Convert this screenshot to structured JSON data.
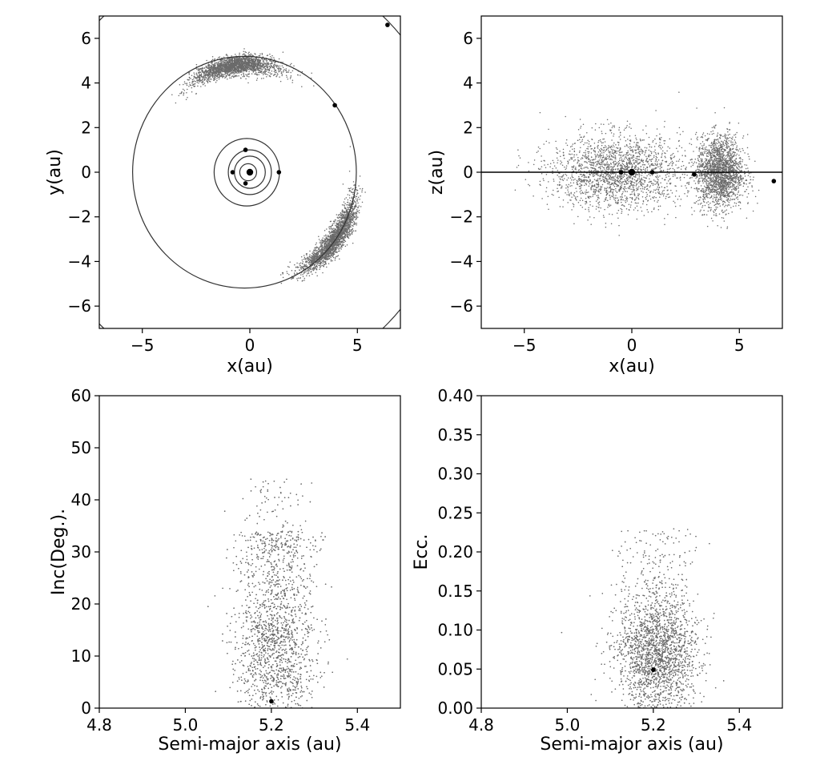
{
  "chart_data": [
    {
      "type": "scatter",
      "panel": "top-left",
      "xlabel": "x(au)",
      "ylabel": "y(au)",
      "xlim": [
        -7,
        7
      ],
      "ylim": [
        -7,
        7
      ],
      "xticks": [
        -5,
        0,
        5
      ],
      "yticks": [
        -6,
        -4,
        -2,
        0,
        2,
        4,
        6
      ],
      "tick_labels_x": [
        "−5",
        "0",
        "5"
      ],
      "tick_labels_y": [
        "−6",
        "−4",
        "−2",
        "0",
        "2",
        "4",
        "6"
      ],
      "orbits": [
        {
          "a": 0.39,
          "b": 0.38,
          "cx": -0.08,
          "cy": 0
        },
        {
          "a": 0.72,
          "b": 0.72,
          "cx": 0,
          "cy": 0
        },
        {
          "a": 1.0,
          "b": 1.0,
          "cx": 0,
          "cy": 0
        },
        {
          "a": 1.52,
          "b": 1.51,
          "cx": -0.14,
          "cy": 0
        },
        {
          "a": 5.2,
          "b": 5.19,
          "cx": -0.25,
          "cy": 0
        },
        {
          "a": 9.55,
          "b": 9.53,
          "cx": -0.3,
          "cy": 0
        }
      ],
      "bodies": [
        {
          "x": 0,
          "y": 0,
          "size": "large"
        },
        {
          "x": -0.2,
          "y": 1.0,
          "size": "small"
        },
        {
          "x": -0.8,
          "y": 0.0,
          "size": "small"
        },
        {
          "x": -0.2,
          "y": -0.5,
          "size": "small"
        },
        {
          "x": 1.35,
          "y": 0.0,
          "size": "small"
        },
        {
          "x": 3.95,
          "y": 3.0,
          "size": "small"
        },
        {
          "x": 6.4,
          "y": 6.6,
          "size": "small"
        }
      ],
      "swarms": [
        {
          "center_angle_deg": 98,
          "spread_deg": 22,
          "radius": 4.85,
          "radial_spread": 0.35
        },
        {
          "center_angle_deg": -38,
          "spread_deg": 22,
          "radius": 5.0,
          "radial_spread": 0.35
        }
      ]
    },
    {
      "type": "scatter",
      "panel": "top-right",
      "xlabel": "x(au)",
      "ylabel": "z(au)",
      "xlim": [
        -7,
        7
      ],
      "ylim": [
        -7,
        7
      ],
      "xticks": [
        -5,
        0,
        5
      ],
      "yticks": [
        -6,
        -4,
        -2,
        0,
        2,
        4,
        6
      ],
      "tick_labels_x": [
        "−5",
        "0",
        "5"
      ],
      "tick_labels_y": [
        "−6",
        "−4",
        "−2",
        "0",
        "2",
        "4",
        "6"
      ],
      "reference_line_y": 0,
      "bodies": [
        {
          "x": 0,
          "y": 0,
          "size": "large"
        },
        {
          "x": -0.5,
          "y": 0.0,
          "size": "small"
        },
        {
          "x": 0.95,
          "y": 0.0,
          "size": "small"
        },
        {
          "x": 2.9,
          "y": -0.1,
          "size": "small"
        },
        {
          "x": 6.6,
          "y": -0.4,
          "size": "small"
        }
      ],
      "swarms": [
        {
          "x_center": -0.7,
          "x_spread": 3.6,
          "z_spread": 1.35
        },
        {
          "x_center": 4.1,
          "x_spread": 1.3,
          "z_spread": 1.3
        }
      ]
    },
    {
      "type": "scatter",
      "panel": "bottom-left",
      "xlabel": "Semi-major axis (au)",
      "ylabel": "Inc(Deg.).",
      "xlim": [
        4.8,
        5.5
      ],
      "ylim": [
        0,
        60
      ],
      "xticks": [
        4.8,
        5.0,
        5.2,
        5.4
      ],
      "yticks": [
        0,
        10,
        20,
        30,
        40,
        50,
        60
      ],
      "tick_labels_x": [
        "4.8",
        "5.0",
        "5.2",
        "5.4"
      ],
      "tick_labels_y": [
        "0",
        "10",
        "20",
        "30",
        "40",
        "50",
        "60"
      ],
      "bodies": [
        {
          "x": 5.2,
          "y": 1.3,
          "size": "small"
        }
      ],
      "swarm": {
        "x_center": 5.21,
        "x_spread": 0.075,
        "y_mode": 9,
        "y_max": 44
      }
    },
    {
      "type": "scatter",
      "panel": "bottom-right",
      "xlabel": "Semi-major axis (au)",
      "ylabel": "Ecc.",
      "xlim": [
        4.8,
        5.5
      ],
      "ylim": [
        0,
        0.4
      ],
      "xticks": [
        4.8,
        5.0,
        5.2,
        5.4
      ],
      "yticks": [
        0,
        0.05,
        0.1,
        0.15,
        0.2,
        0.25,
        0.3,
        0.35,
        0.4
      ],
      "tick_labels_x": [
        "4.8",
        "5.0",
        "5.2",
        "5.4"
      ],
      "tick_labels_y": [
        "0.00",
        "0.05",
        "0.10",
        "0.15",
        "0.20",
        "0.25",
        "0.30",
        "0.35",
        "0.40"
      ],
      "bodies": [
        {
          "x": 5.2,
          "y": 0.049,
          "size": "small"
        }
      ],
      "swarm": {
        "x_center": 5.21,
        "x_spread": 0.075,
        "y_mean": 0.07,
        "y_sd": 0.035,
        "y_max": 0.235
      }
    }
  ],
  "colors": {
    "points": "#6b6b6b",
    "bodies": "#000000",
    "orbits": "#333333",
    "frame": "#000000"
  }
}
